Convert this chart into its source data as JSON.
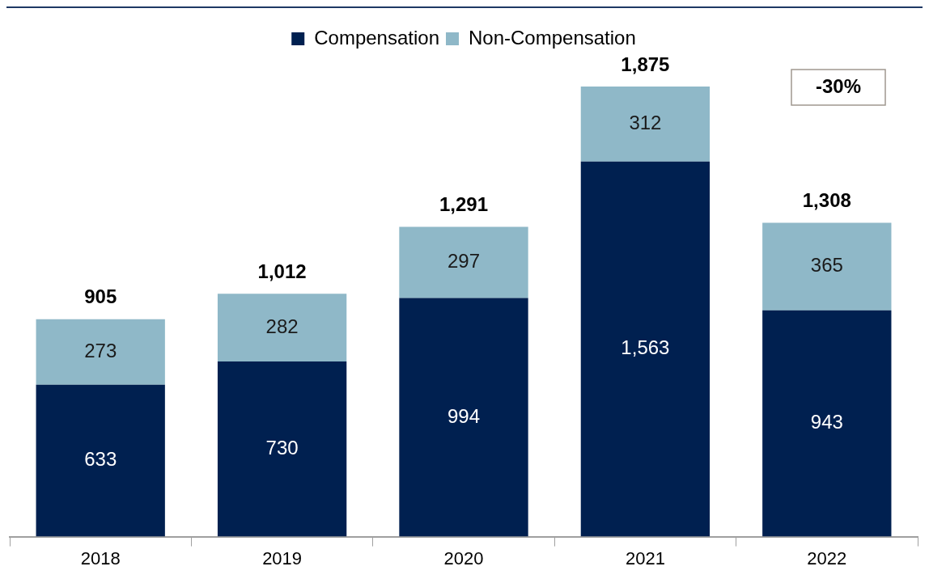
{
  "chart_data": {
    "type": "bar",
    "stacked": true,
    "categories": [
      "2018",
      "2019",
      "2020",
      "2021",
      "2022"
    ],
    "series": [
      {
        "name": "Compensation",
        "color": "#002050",
        "values": [
          633,
          730,
          994,
          1563,
          943
        ],
        "value_labels": [
          "633",
          "730",
          "994",
          "1,563",
          "943"
        ]
      },
      {
        "name": "Non-Compensation",
        "color": "#8fb8c8",
        "values": [
          273,
          282,
          297,
          312,
          365
        ],
        "value_labels": [
          "273",
          "282",
          "297",
          "312",
          "365"
        ]
      }
    ],
    "totals": [
      "905",
      "1,012",
      "1,291",
      "1,875",
      "1,308"
    ],
    "annotations": [
      "-30%"
    ],
    "legend": "top",
    "grid": false
  }
}
